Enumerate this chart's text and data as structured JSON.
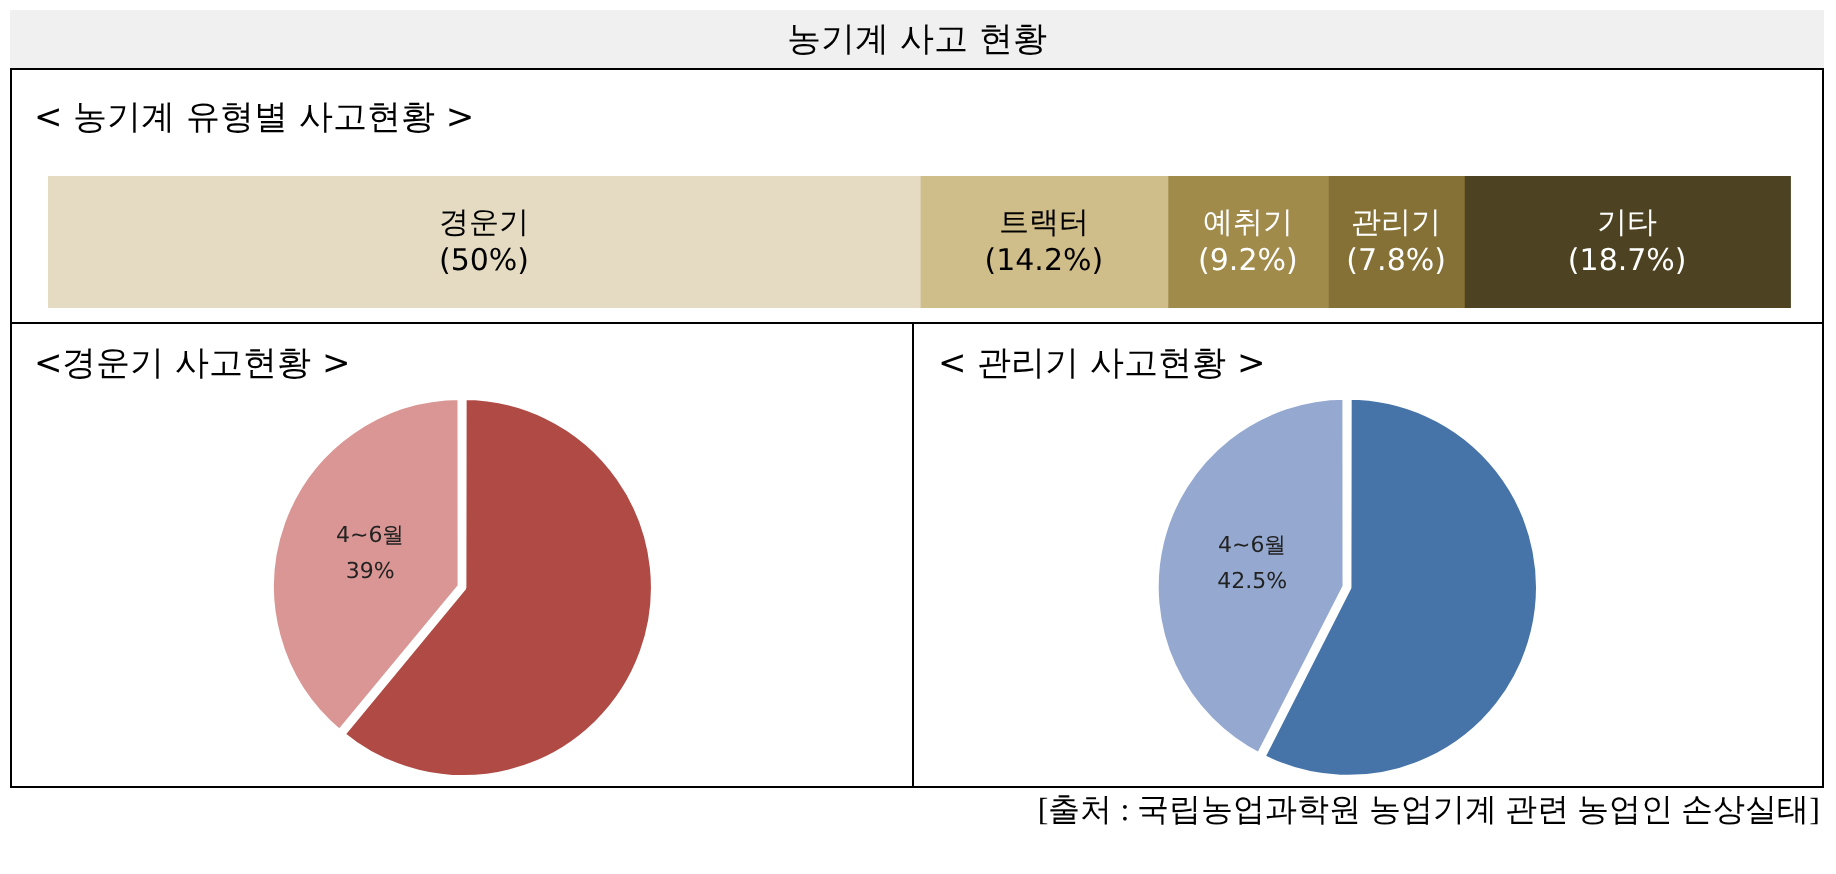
{
  "chart_data": [
    {
      "type": "bar",
      "orientation": "horizontal",
      "stacked": true,
      "title": "농기계 사고 현황",
      "subtitle": "< 농기계 유형별 사고현황 >",
      "categories": [
        null
      ],
      "xlim": [
        0,
        100
      ],
      "tick_labels": false,
      "series": [
        {
          "name": "경운기",
          "color": "#e4dbc2",
          "values": [
            50
          ],
          "value_labels": [
            "(50%)"
          ]
        },
        {
          "name": "트랙터",
          "color": "#cfbd8a",
          "values": [
            14.2
          ],
          "value_labels": [
            "(14.2%)"
          ]
        },
        {
          "name": "예취기",
          "color": "#a08b4b",
          "values": [
            9.2
          ],
          "value_labels": [
            "(9.2%)"
          ]
        },
        {
          "name": "관리기",
          "color": "#857136",
          "values": [
            7.8
          ],
          "value_labels": [
            "(7.8%)"
          ]
        },
        {
          "name": "기타",
          "color": "#4d4322",
          "values": [
            18.7
          ],
          "value_labels": [
            "(18.7%)"
          ]
        }
      ],
      "annotations": [
        "[출처 : 국립농업과학원 농업기계 관련 농업인 손상실태]"
      ]
    },
    {
      "type": "pie",
      "title": "<경운기 사고현황 >",
      "categories": [
        "4~6월",
        null
      ],
      "values": [
        39,
        61
      ],
      "colors": [
        "#d99694",
        "#b04a45"
      ],
      "value_labels": [
        "39%",
        null
      ]
    },
    {
      "type": "pie",
      "title": "< 관리기 사고현황 >",
      "categories": [
        "4~6월",
        null
      ],
      "values": [
        42.5,
        57.5
      ],
      "colors": [
        "#95a9d0",
        "#4674a8"
      ],
      "value_labels": [
        "42.5%",
        null
      ]
    }
  ]
}
